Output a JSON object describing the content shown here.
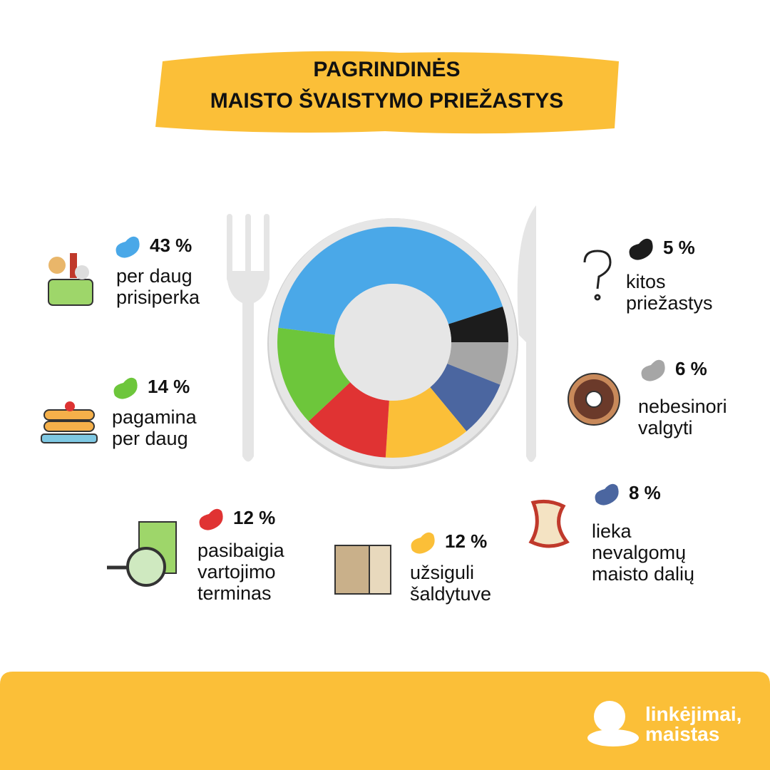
{
  "title": "PAGRINDINĖS\nMAISTO ŠVAISTYMO PRIEŽASTYS",
  "chart_data": {
    "type": "donut",
    "categories": [
      "per daug\nprisiperka",
      "kitos\npriežastys",
      "nebesinori\nvalgyti",
      "lieka\nnevalgomų\nmaisto dalių",
      "užsiguli\nšaldytuve",
      "pasibaigia\nvartojimo\nterminas",
      "pagamina\nper daug"
    ],
    "values": [
      43,
      5,
      6,
      8,
      12,
      12,
      14
    ],
    "value_labels": [
      "43 %",
      "5 %",
      "6 %",
      "8 %",
      "12 %",
      "12 %",
      "14 %"
    ],
    "colors": [
      "#4aa8e8",
      "#1c1c1c",
      "#a6a6a6",
      "#4b66a0",
      "#fbbf38",
      "#e03333",
      "#6dc63b"
    ]
  },
  "brand": "linkėjimai,\nmaistas"
}
